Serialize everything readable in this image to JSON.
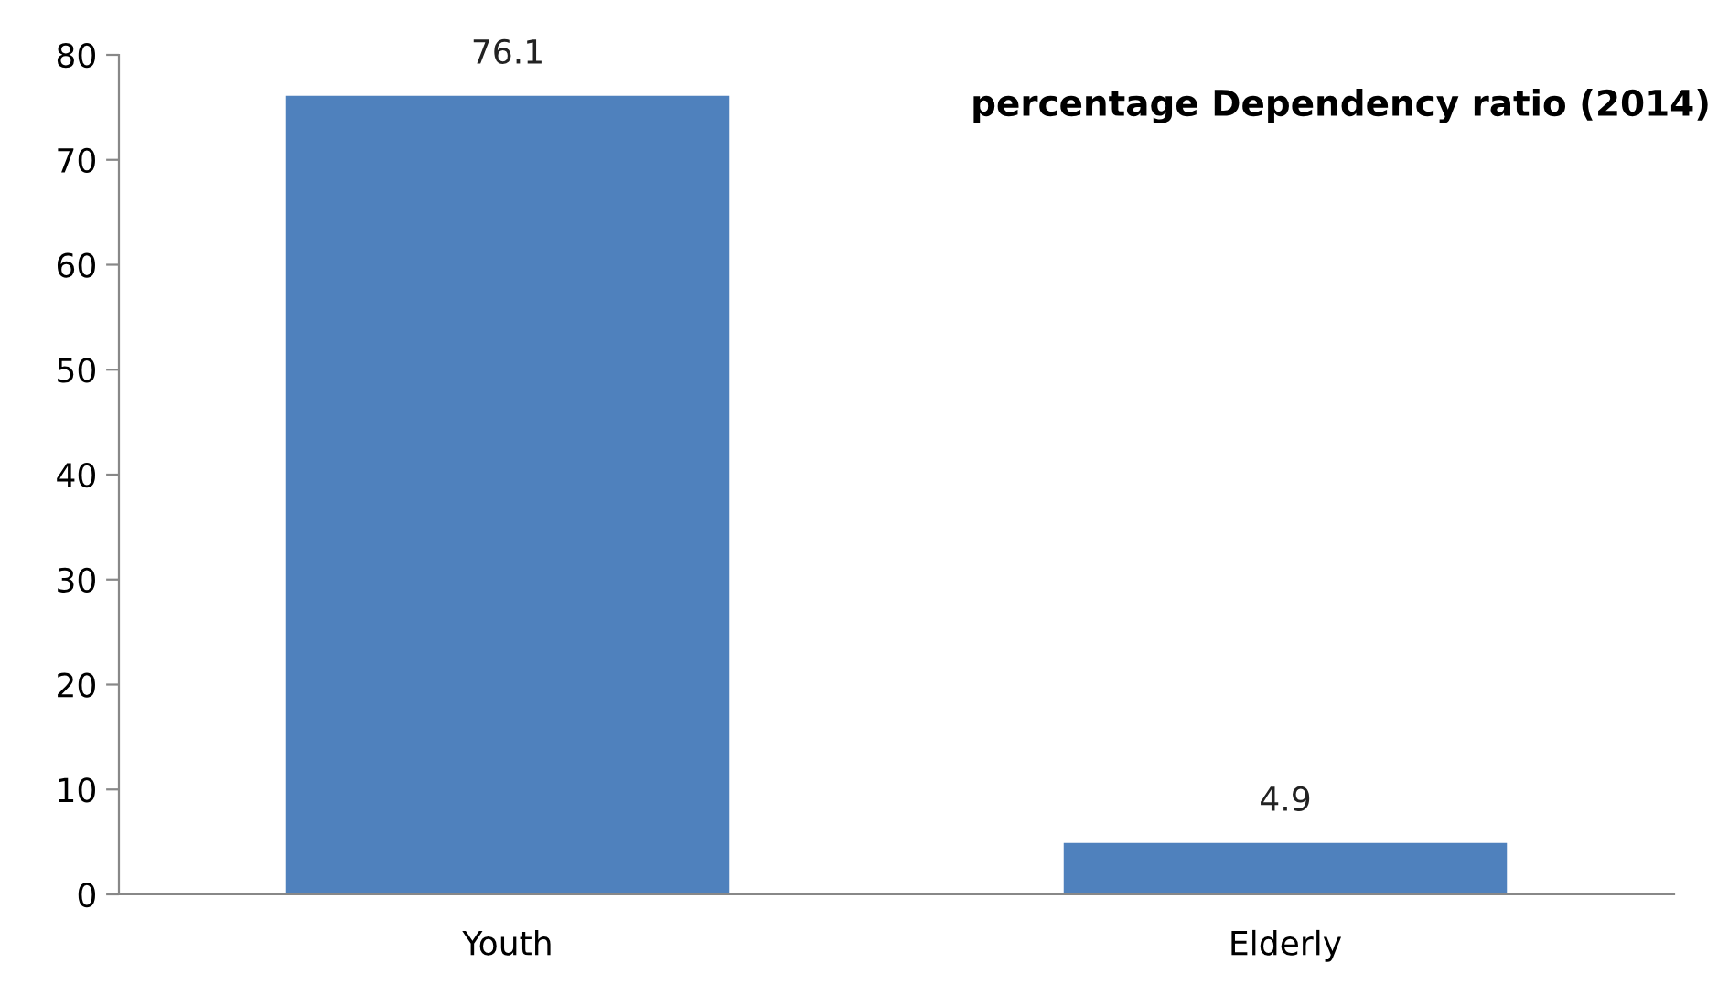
{
  "chart_data": {
    "type": "bar",
    "title": "percentage Dependency ratio (2014)",
    "categories": [
      "Youth",
      "Elderly"
    ],
    "values": [
      76.1,
      4.9
    ],
    "color": "#4f81bd",
    "ylim": [
      0,
      80
    ],
    "yticks": [
      0,
      10,
      20,
      30,
      40,
      50,
      60,
      70,
      80
    ],
    "data_labels": true,
    "grid": false,
    "legend": false
  }
}
